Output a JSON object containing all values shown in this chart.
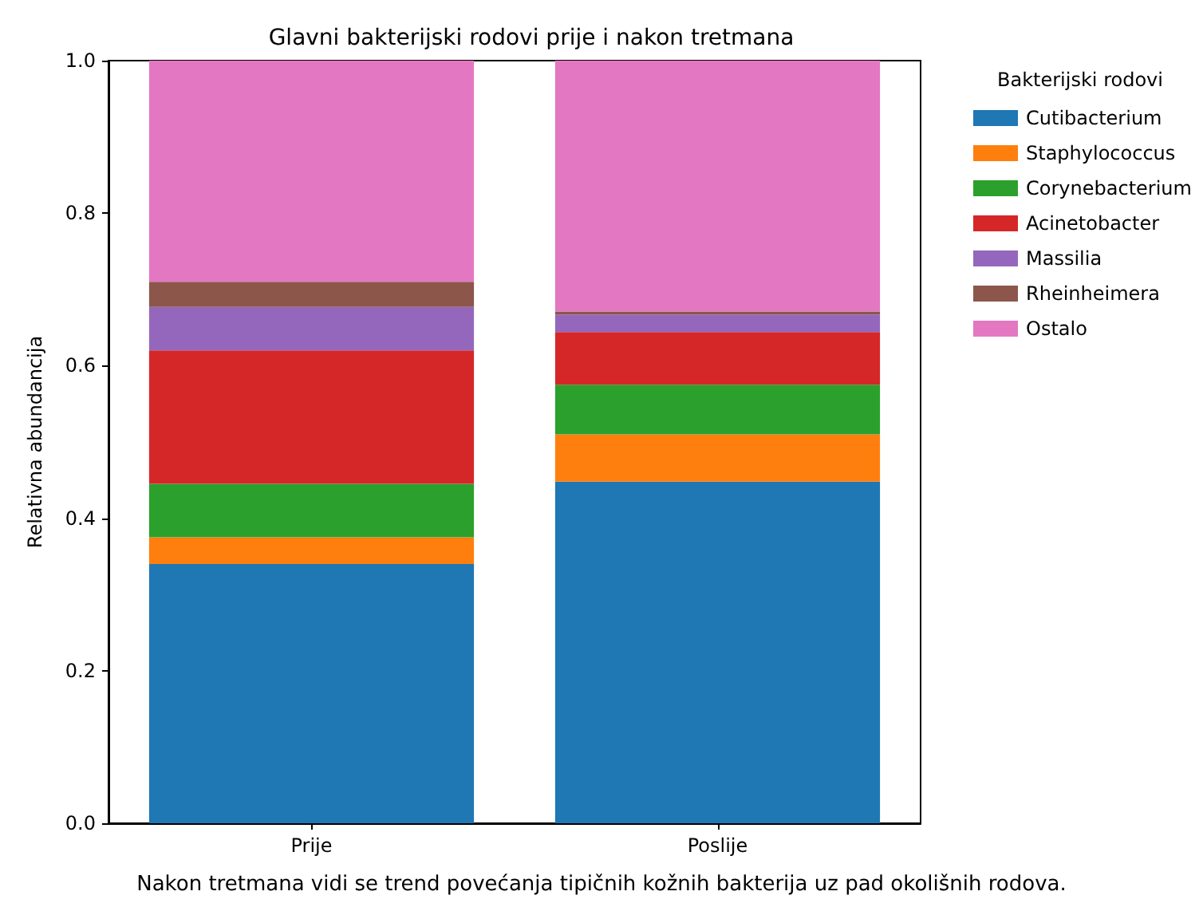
{
  "chart_data": {
    "type": "bar",
    "stacked": true,
    "title": "Glavni bakterijski rodovi prije i nakon tretmana",
    "ylabel": "Relativna abundancija",
    "legend_title": "Bakterijski rodovi",
    "legend": "top right",
    "grid": false,
    "categories": [
      "Prije",
      "Poslije"
    ],
    "series": [
      {
        "name": "Cutibacterium",
        "color": "#1f77b4",
        "values": [
          0.34,
          0.448
        ]
      },
      {
        "name": "Staphylococcus",
        "color": "#ff7f0e",
        "values": [
          0.035,
          0.062
        ]
      },
      {
        "name": "Corynebacterium",
        "color": "#2ca02c",
        "values": [
          0.07,
          0.065
        ]
      },
      {
        "name": "Acinetobacter",
        "color": "#d62728",
        "values": [
          0.175,
          0.069
        ]
      },
      {
        "name": "Massilia",
        "color": "#9467bd",
        "values": [
          0.057,
          0.023
        ]
      },
      {
        "name": "Rheinheimera",
        "color": "#8c564b",
        "values": [
          0.033,
          0.004
        ]
      },
      {
        "name": "Ostalo",
        "color": "#e377c2",
        "values": [
          0.29,
          0.329
        ]
      }
    ],
    "ylim": [
      0,
      1
    ],
    "yticks": [
      {
        "value": 0,
        "label": "0.0"
      },
      {
        "value": 0.2,
        "label": "0.2"
      },
      {
        "value": 0.4,
        "label": "0.4"
      },
      {
        "value": 0.6,
        "label": "0.6"
      },
      {
        "value": 0.8,
        "label": "0.8"
      },
      {
        "value": 1,
        "label": "1.0"
      }
    ],
    "annotations": [
      "Nakon tretmana vidi se trend povećanja tipičnih kožnih bakterija uz pad okolišnih rodova."
    ]
  }
}
